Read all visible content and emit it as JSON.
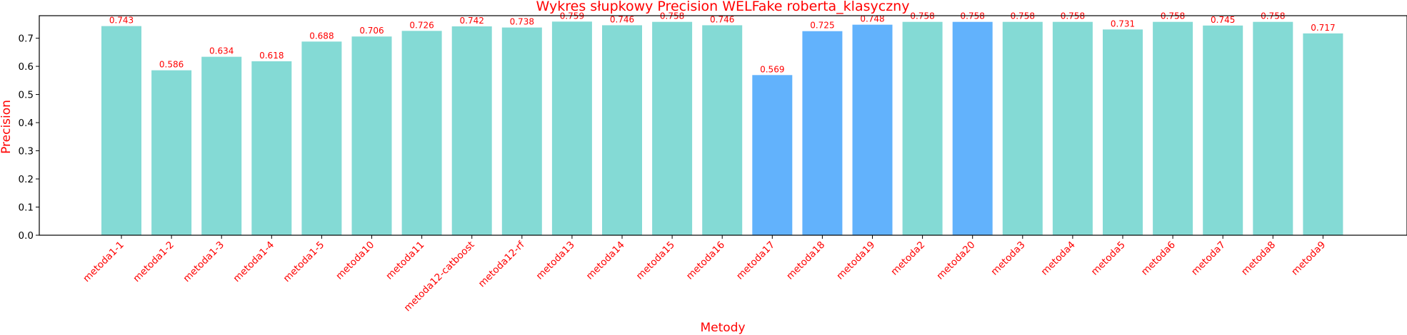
{
  "chart_data": {
    "type": "bar",
    "title": "Wykres słupkowy Precision WELFake roberta_klasyczny",
    "xlabel": "Metody",
    "ylabel": "Precision",
    "ylim": [
      0,
      0.78
    ],
    "yticks": [
      0.0,
      0.1,
      0.2,
      0.3,
      0.4,
      0.5,
      0.6,
      0.7
    ],
    "grid": false,
    "colors": {
      "default": "#84dad5",
      "highlight": "#62b2fc",
      "text": "#ff0000",
      "axis": "#000000"
    },
    "bars": [
      {
        "category": "metoda1-1",
        "value": 0.743,
        "label": "0.743",
        "highlight": false
      },
      {
        "category": "metoda1-2",
        "value": 0.586,
        "label": "0.586",
        "highlight": false
      },
      {
        "category": "metoda1-3",
        "value": 0.634,
        "label": "0.634",
        "highlight": false
      },
      {
        "category": "metoda1-4",
        "value": 0.618,
        "label": "0.618",
        "highlight": false
      },
      {
        "category": "metoda1-5",
        "value": 0.688,
        "label": "0.688",
        "highlight": false
      },
      {
        "category": "metoda10",
        "value": 0.706,
        "label": "0.706",
        "highlight": false
      },
      {
        "category": "metoda11",
        "value": 0.726,
        "label": "0.726",
        "highlight": false
      },
      {
        "category": "metoda12-catboost",
        "value": 0.742,
        "label": "0.742",
        "highlight": false
      },
      {
        "category": "metoda12-rf",
        "value": 0.738,
        "label": "0.738",
        "highlight": false
      },
      {
        "category": "metoda13",
        "value": 0.759,
        "label": "0.759",
        "highlight": false
      },
      {
        "category": "metoda14",
        "value": 0.746,
        "label": "0.746",
        "highlight": false
      },
      {
        "category": "metoda15",
        "value": 0.758,
        "label": "0.758",
        "highlight": false
      },
      {
        "category": "metoda16",
        "value": 0.746,
        "label": "0.746",
        "highlight": false
      },
      {
        "category": "metoda17",
        "value": 0.569,
        "label": "0.569",
        "highlight": true
      },
      {
        "category": "metoda18",
        "value": 0.725,
        "label": "0.725",
        "highlight": true
      },
      {
        "category": "metoda19",
        "value": 0.748,
        "label": "0.748",
        "highlight": true
      },
      {
        "category": "metoda2",
        "value": 0.758,
        "label": "0.758",
        "highlight": false
      },
      {
        "category": "metoda20",
        "value": 0.758,
        "label": "0.758",
        "highlight": true
      },
      {
        "category": "metoda3",
        "value": 0.758,
        "label": "0.758",
        "highlight": false
      },
      {
        "category": "metoda4",
        "value": 0.758,
        "label": "0.758",
        "highlight": false
      },
      {
        "category": "metoda5",
        "value": 0.731,
        "label": "0.731",
        "highlight": false
      },
      {
        "category": "metoda6",
        "value": 0.758,
        "label": "0.758",
        "highlight": false
      },
      {
        "category": "metoda7",
        "value": 0.745,
        "label": "0.745",
        "highlight": false
      },
      {
        "category": "metoda8",
        "value": 0.758,
        "label": "0.758",
        "highlight": false
      },
      {
        "category": "metoda9",
        "value": 0.717,
        "label": "0.717",
        "highlight": false
      }
    ]
  }
}
